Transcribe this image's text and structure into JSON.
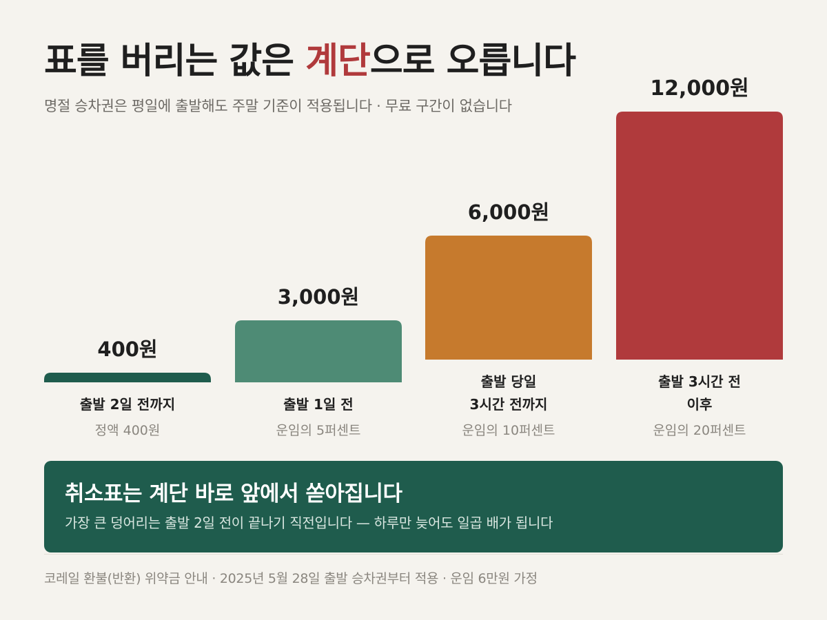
{
  "header": {
    "title_before": "표를 버리는 값은 ",
    "title_accent": "계단",
    "title_after": "으로 오릅니다",
    "subtitle": "명절 승차권은 평일에 출발해도 주말 기준이 적용됩니다 · 무료 구간이 없습니다"
  },
  "colors": {
    "background": "#f5f3ee",
    "accent_red": "#b03a3c",
    "dark_green": "#1f5c4d",
    "mid_green": "#4e8b75",
    "orange": "#c67a2d"
  },
  "chart_data": {
    "type": "bar",
    "unit": "원",
    "ylim": [
      0,
      12000
    ],
    "grid": false,
    "legend": "none",
    "bars": [
      {
        "lines": [
          "출발 2일 전까지"
        ],
        "note": "정액 400원",
        "value": 400,
        "value_label": "400원",
        "color": "#1f5c4d"
      },
      {
        "lines": [
          "출발 1일 전"
        ],
        "note": "운임의 5퍼센트",
        "value": 3000,
        "value_label": "3,000원",
        "color": "#4e8b75"
      },
      {
        "lines": [
          "출발 당일",
          "3시간 전까지"
        ],
        "note": "운임의 10퍼센트",
        "value": 6000,
        "value_label": "6,000원",
        "color": "#c67a2d"
      },
      {
        "lines": [
          "출발 3시간 전",
          "이후"
        ],
        "note": "운임의 20퍼센트",
        "value": 12000,
        "value_label": "12,000원",
        "color": "#b03a3c"
      }
    ]
  },
  "callout": {
    "title": "취소표는 계단 바로 앞에서 쏟아집니다",
    "body": "가장 큰 덩어리는 출발 2일 전이 끝나기 직전입니다 — 하루만 늦어도 일곱 배가 됩니다"
  },
  "footer": {
    "source": "코레일 환불(반환) 위약금 안내 · 2025년 5월 28일 출발 승차권부터 적용 · 운임 6만원 가정"
  }
}
